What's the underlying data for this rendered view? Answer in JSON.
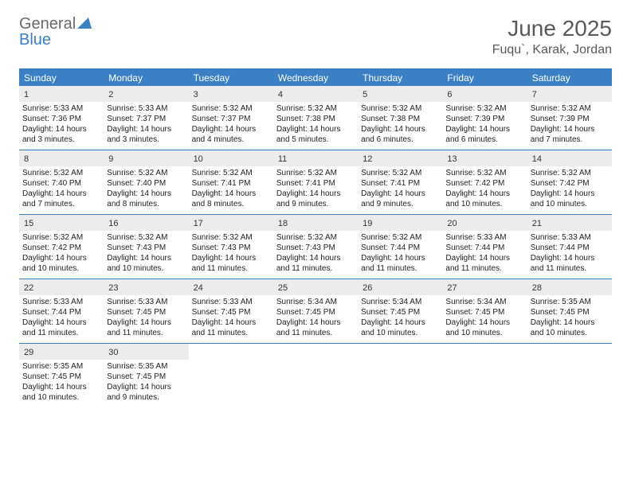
{
  "logo": {
    "word1": "General",
    "word2": "Blue"
  },
  "title": "June 2025",
  "location": "Fuqu`, Karak, Jordan",
  "colors": {
    "accent": "#3b7fc4",
    "header_text": "#595959",
    "day_bg": "#ececec",
    "body_bg": "#ffffff"
  },
  "days_of_week": [
    "Sunday",
    "Monday",
    "Tuesday",
    "Wednesday",
    "Thursday",
    "Friday",
    "Saturday"
  ],
  "calendar": {
    "type": "table",
    "columns": 7,
    "rows": 5,
    "cells": [
      {
        "day": 1,
        "sunrise": "5:33 AM",
        "sunset": "7:36 PM",
        "daylight": "14 hours and 3 minutes."
      },
      {
        "day": 2,
        "sunrise": "5:33 AM",
        "sunset": "7:37 PM",
        "daylight": "14 hours and 3 minutes."
      },
      {
        "day": 3,
        "sunrise": "5:32 AM",
        "sunset": "7:37 PM",
        "daylight": "14 hours and 4 minutes."
      },
      {
        "day": 4,
        "sunrise": "5:32 AM",
        "sunset": "7:38 PM",
        "daylight": "14 hours and 5 minutes."
      },
      {
        "day": 5,
        "sunrise": "5:32 AM",
        "sunset": "7:38 PM",
        "daylight": "14 hours and 6 minutes."
      },
      {
        "day": 6,
        "sunrise": "5:32 AM",
        "sunset": "7:39 PM",
        "daylight": "14 hours and 6 minutes."
      },
      {
        "day": 7,
        "sunrise": "5:32 AM",
        "sunset": "7:39 PM",
        "daylight": "14 hours and 7 minutes."
      },
      {
        "day": 8,
        "sunrise": "5:32 AM",
        "sunset": "7:40 PM",
        "daylight": "14 hours and 7 minutes."
      },
      {
        "day": 9,
        "sunrise": "5:32 AM",
        "sunset": "7:40 PM",
        "daylight": "14 hours and 8 minutes."
      },
      {
        "day": 10,
        "sunrise": "5:32 AM",
        "sunset": "7:41 PM",
        "daylight": "14 hours and 8 minutes."
      },
      {
        "day": 11,
        "sunrise": "5:32 AM",
        "sunset": "7:41 PM",
        "daylight": "14 hours and 9 minutes."
      },
      {
        "day": 12,
        "sunrise": "5:32 AM",
        "sunset": "7:41 PM",
        "daylight": "14 hours and 9 minutes."
      },
      {
        "day": 13,
        "sunrise": "5:32 AM",
        "sunset": "7:42 PM",
        "daylight": "14 hours and 10 minutes."
      },
      {
        "day": 14,
        "sunrise": "5:32 AM",
        "sunset": "7:42 PM",
        "daylight": "14 hours and 10 minutes."
      },
      {
        "day": 15,
        "sunrise": "5:32 AM",
        "sunset": "7:42 PM",
        "daylight": "14 hours and 10 minutes."
      },
      {
        "day": 16,
        "sunrise": "5:32 AM",
        "sunset": "7:43 PM",
        "daylight": "14 hours and 10 minutes."
      },
      {
        "day": 17,
        "sunrise": "5:32 AM",
        "sunset": "7:43 PM",
        "daylight": "14 hours and 11 minutes."
      },
      {
        "day": 18,
        "sunrise": "5:32 AM",
        "sunset": "7:43 PM",
        "daylight": "14 hours and 11 minutes."
      },
      {
        "day": 19,
        "sunrise": "5:32 AM",
        "sunset": "7:44 PM",
        "daylight": "14 hours and 11 minutes."
      },
      {
        "day": 20,
        "sunrise": "5:33 AM",
        "sunset": "7:44 PM",
        "daylight": "14 hours and 11 minutes."
      },
      {
        "day": 21,
        "sunrise": "5:33 AM",
        "sunset": "7:44 PM",
        "daylight": "14 hours and 11 minutes."
      },
      {
        "day": 22,
        "sunrise": "5:33 AM",
        "sunset": "7:44 PM",
        "daylight": "14 hours and 11 minutes."
      },
      {
        "day": 23,
        "sunrise": "5:33 AM",
        "sunset": "7:45 PM",
        "daylight": "14 hours and 11 minutes."
      },
      {
        "day": 24,
        "sunrise": "5:33 AM",
        "sunset": "7:45 PM",
        "daylight": "14 hours and 11 minutes."
      },
      {
        "day": 25,
        "sunrise": "5:34 AM",
        "sunset": "7:45 PM",
        "daylight": "14 hours and 11 minutes."
      },
      {
        "day": 26,
        "sunrise": "5:34 AM",
        "sunset": "7:45 PM",
        "daylight": "14 hours and 10 minutes."
      },
      {
        "day": 27,
        "sunrise": "5:34 AM",
        "sunset": "7:45 PM",
        "daylight": "14 hours and 10 minutes."
      },
      {
        "day": 28,
        "sunrise": "5:35 AM",
        "sunset": "7:45 PM",
        "daylight": "14 hours and 10 minutes."
      },
      {
        "day": 29,
        "sunrise": "5:35 AM",
        "sunset": "7:45 PM",
        "daylight": "14 hours and 10 minutes."
      },
      {
        "day": 30,
        "sunrise": "5:35 AM",
        "sunset": "7:45 PM",
        "daylight": "14 hours and 9 minutes."
      },
      null,
      null,
      null,
      null,
      null
    ]
  },
  "labels": {
    "sunrise": "Sunrise:",
    "sunset": "Sunset:",
    "daylight": "Daylight:"
  }
}
